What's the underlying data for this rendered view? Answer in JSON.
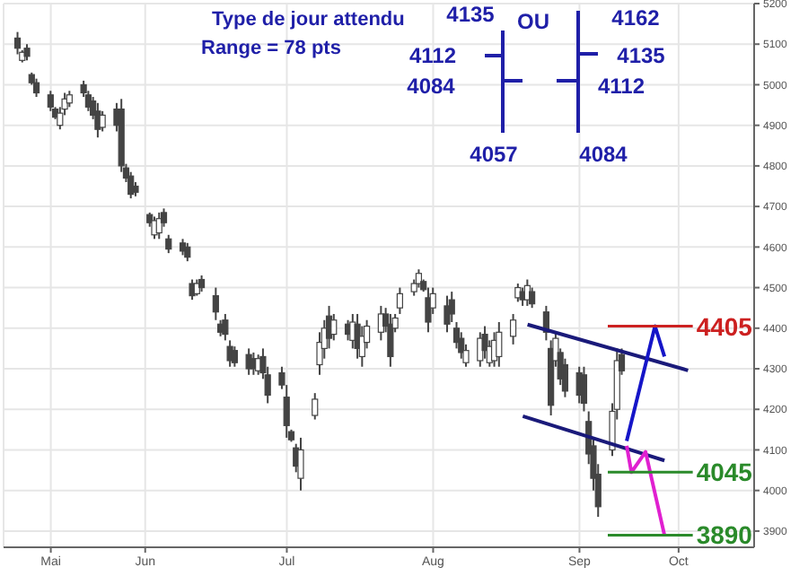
{
  "chart_data": {
    "type": "candlestick",
    "color": "#444444",
    "grid": true,
    "annotations": [
      "Type de jour attendu",
      "Range = 78 pts",
      "4135",
      "4112",
      "4084",
      "4057",
      "OU",
      "4162",
      "4135",
      "4112",
      "4084"
    ],
    "x": [
      "--05-19",
      "--05-20",
      "--05-21",
      "--05-22",
      "--05-23",
      "--05-26",
      "--05-27",
      "--05-28",
      "--05-29",
      "--05-30",
      "--06-02",
      "--06-03",
      "--06-04",
      "--06-05",
      "--06-06",
      "--06-09",
      "--06-10",
      "--06-11",
      "--06-12",
      "--06-13",
      "--06-16",
      "--06-17",
      "--06-18",
      "--06-19",
      "--06-20",
      "--06-23",
      "--06-24",
      "--06-25",
      "--06-26",
      "--06-27",
      "--06-30",
      "--07-01",
      "--07-02",
      "--07-03",
      "--07-04",
      "--07-07",
      "--07-08",
      "--07-09",
      "--07-10",
      "--07-11",
      "--07-14",
      "--07-15",
      "--07-16",
      "--07-17",
      "--07-18",
      "--07-21",
      "--07-22",
      "--07-23",
      "--07-24",
      "--07-25",
      "--07-28",
      "--07-29",
      "--07-30",
      "--07-31",
      "--08-01",
      "--08-04",
      "--08-05",
      "--08-06",
      "--08-07",
      "--08-08",
      "--08-11",
      "--08-12",
      "--08-13",
      "--08-14",
      "--08-15",
      "--08-18",
      "--08-19",
      "--08-20",
      "--08-21",
      "--08-22",
      "--08-25",
      "--08-26",
      "--08-27",
      "--08-28",
      "--08-29",
      "--09-01",
      "--09-02",
      "--09-03",
      "--09-04",
      "--09-05",
      "--09-08",
      "--09-09",
      "--09-10",
      "--09-11",
      "--09-12",
      "--09-15",
      "--09-16",
      "--09-17",
      "--09-18",
      "--09-19",
      "--09-22",
      "--09-23",
      "--09-24"
    ],
    "ohlc": [
      [
        5115,
        5130,
        5075,
        5090
      ],
      [
        5060,
        5085,
        5055,
        5080
      ],
      [
        5090,
        5100,
        5060,
        5070
      ],
      [
        5025,
        5030,
        5000,
        5005
      ],
      [
        5005,
        5015,
        4970,
        4980
      ],
      [
        4975,
        4985,
        4935,
        4945
      ],
      [
        4940,
        4945,
        4915,
        4920
      ],
      [
        4900,
        4945,
        4890,
        4930
      ],
      [
        4940,
        4980,
        4925,
        4965
      ],
      [
        4955,
        4985,
        4945,
        4975
      ],
      [
        5000,
        5010,
        4970,
        4980
      ],
      [
        4975,
        4985,
        4935,
        4945
      ],
      [
        4960,
        4970,
        4915,
        4925
      ],
      [
        4935,
        4955,
        4870,
        4890
      ],
      [
        4895,
        4935,
        4885,
        4925
      ],
      [
        4940,
        4955,
        4885,
        4900
      ],
      [
        4940,
        4965,
        4785,
        4800
      ],
      [
        4795,
        4805,
        4760,
        4770
      ],
      [
        4775,
        4785,
        4720,
        4730
      ],
      [
        4750,
        4760,
        4725,
        4735
      ],
      [
        4680,
        4685,
        4650,
        4660
      ],
      [
        4630,
        4675,
        4620,
        4665
      ],
      [
        4635,
        4685,
        4620,
        4670
      ],
      [
        4685,
        4695,
        4650,
        4660
      ],
      [
        4620,
        4630,
        4585,
        4595
      ],
      [
        4610,
        4620,
        4580,
        4590
      ],
      [
        4600,
        4610,
        4565,
        4575
      ],
      [
        4510,
        4520,
        4470,
        4480
      ],
      [
        4485,
        4520,
        4480,
        4510
      ],
      [
        4520,
        4530,
        4490,
        4500
      ],
      [
        4480,
        4500,
        4420,
        4440
      ],
      [
        4410,
        4420,
        4380,
        4390
      ],
      [
        4420,
        4435,
        4370,
        4385
      ],
      [
        4355,
        4370,
        4305,
        4320
      ],
      [
        4345,
        4355,
        4305,
        4315
      ],
      [
        4335,
        4350,
        4285,
        4300
      ],
      [
        4325,
        4340,
        4285,
        4300
      ],
      [
        4295,
        4335,
        4285,
        4325
      ],
      [
        4330,
        4350,
        4275,
        4290
      ],
      [
        4285,
        4305,
        4215,
        4235
      ],
      [
        4290,
        4305,
        4250,
        4260
      ],
      [
        4230,
        4260,
        4130,
        4160
      ],
      [
        4145,
        4150,
        4120,
        4125
      ],
      [
        4105,
        4115,
        4045,
        4060
      ],
      [
        4030,
        4130,
        4000,
        4100
      ],
      [
        4185,
        4240,
        4175,
        4225
      ],
      [
        4310,
        4390,
        4285,
        4365
      ],
      [
        4350,
        4420,
        4325,
        4400
      ],
      [
        4430,
        4455,
        4350,
        4375
      ],
      [
        4385,
        4435,
        4370,
        4420
      ],
      [
        4410,
        4420,
        4370,
        4385
      ],
      [
        4370,
        4435,
        4350,
        4415
      ],
      [
        4410,
        4435,
        4325,
        4350
      ],
      [
        4330,
        4405,
        4305,
        4380
      ],
      [
        4365,
        4420,
        4350,
        4405
      ],
      [
        4390,
        4455,
        4370,
        4435
      ],
      [
        4435,
        4450,
        4390,
        4405
      ],
      [
        4410,
        4435,
        4305,
        4330
      ],
      [
        4400,
        4435,
        4390,
        4425
      ],
      [
        4450,
        4500,
        4435,
        4485
      ],
      [
        4490,
        4520,
        4480,
        4510
      ],
      [
        4510,
        4545,
        4500,
        4535
      ],
      [
        4515,
        4520,
        4490,
        4495
      ],
      [
        4475,
        4500,
        4390,
        4415
      ],
      [
        4450,
        4500,
        4435,
        4485
      ],
      [
        4455,
        4480,
        4390,
        4410
      ],
      [
        4470,
        4490,
        4415,
        4435
      ],
      [
        4400,
        4415,
        4350,
        4365
      ],
      [
        4375,
        4390,
        4325,
        4340
      ],
      [
        4315,
        4360,
        4305,
        4345
      ],
      [
        4320,
        4390,
        4305,
        4375
      ],
      [
        4385,
        4405,
        4325,
        4345
      ],
      [
        4315,
        4370,
        4305,
        4355
      ],
      [
        4320,
        4390,
        4305,
        4370
      ],
      [
        4330,
        4415,
        4305,
        4390
      ],
      [
        4380,
        4435,
        4360,
        4420
      ],
      [
        4475,
        4510,
        4465,
        4500
      ],
      [
        4490,
        4500,
        4455,
        4470
      ],
      [
        4470,
        4520,
        4455,
        4505
      ],
      [
        4490,
        4500,
        4450,
        4460
      ],
      [
        4440,
        4455,
        4370,
        4390
      ],
      [
        4350,
        4370,
        4185,
        4210
      ],
      [
        4320,
        4390,
        4305,
        4375
      ],
      [
        4340,
        4350,
        4260,
        4275
      ],
      [
        4310,
        4325,
        4230,
        4245
      ],
      [
        4290,
        4305,
        4215,
        4235
      ],
      [
        4285,
        4305,
        4195,
        4215
      ],
      [
        4170,
        4195,
        4065,
        4090
      ],
      [
        4110,
        4130,
        4000,
        4030
      ],
      [
        4040,
        4065,
        3935,
        3960
      ],
      [
        4100,
        4215,
        4085,
        4195
      ],
      [
        4200,
        4350,
        4175,
        4320
      ],
      [
        4335,
        4350,
        4285,
        4295
      ]
    ],
    "series": [
      {
        "type": "line",
        "color": "#1a1a7a",
        "x": [
          "--09-04",
          "--10-08"
        ],
        "values": [
          4409,
          4296
        ]
      },
      {
        "type": "line",
        "color": "#1a1a7a",
        "x": [
          "--09-03",
          "--10-03"
        ],
        "values": [
          4183,
          4074
        ]
      },
      {
        "type": "line",
        "color": "#1515c8",
        "x": [
          "--09-25",
          "--10-01",
          "--10-03"
        ],
        "values": [
          4122,
          4405,
          4330
        ]
      },
      {
        "type": "line",
        "color": "#e020d0",
        "x": [
          "--09-25",
          "--09-26",
          "--09-29",
          "--10-03"
        ],
        "values": [
          4110,
          4045,
          4095,
          3890
        ]
      }
    ],
    "ref_lines": [
      {
        "axis": "y",
        "value": 4405,
        "label": "4405",
        "color": "#cc2020"
      },
      {
        "axis": "y",
        "value": 4045,
        "label": "4045",
        "color": "#2a8a2a"
      },
      {
        "axis": "y",
        "value": 3890,
        "label": "3890",
        "color": "#2a8a2a"
      }
    ],
    "xlim": [
      "--05-16",
      "--10-22"
    ],
    "xticks": [
      {
        "value": "--05-26",
        "label": "Mai"
      },
      {
        "value": "--06-15",
        "label": "Jun"
      },
      {
        "value": "--07-15",
        "label": "Jul"
      },
      {
        "value": "--08-15",
        "label": "Aug"
      },
      {
        "value": "--09-15",
        "label": "Sep"
      },
      {
        "value": "--10-06",
        "label": "Oct"
      }
    ],
    "ylim": [
      3860,
      5200
    ],
    "yticks": [
      3900,
      4000,
      4100,
      4200,
      4300,
      4400,
      4500,
      4600,
      4700,
      4800,
      4900,
      5000,
      5100,
      5200
    ]
  }
}
